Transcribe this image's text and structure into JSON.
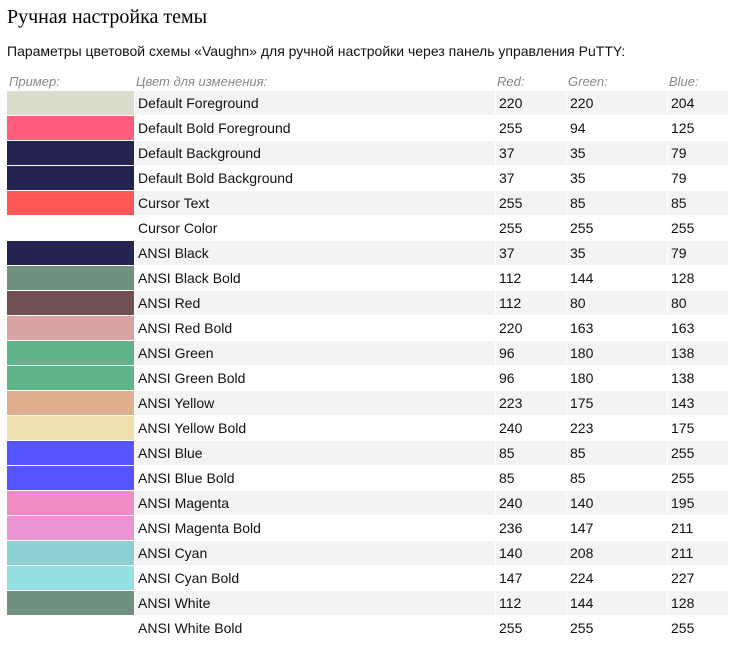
{
  "page": {
    "title": "Ручная настройка темы",
    "intro": "Параметры цветовой схемы «Vaughn» для ручной настройки через панель управления PuTTY:"
  },
  "table": {
    "headers": {
      "swatch": "Пример:",
      "name": "Цвет для изменения:",
      "red": "Red:",
      "green": "Green:",
      "blue": "Blue:"
    },
    "rows": [
      {
        "name": "Default Foreground",
        "red": "220",
        "green": "220",
        "blue": "204",
        "color": "#dcdccc"
      },
      {
        "name": "Default Bold Foreground",
        "red": "255",
        "green": "94",
        "blue": "125",
        "color": "#ff5e7d"
      },
      {
        "name": "Default Background",
        "red": "37",
        "green": "35",
        "blue": "79",
        "color": "#25234f"
      },
      {
        "name": "Default Bold Background",
        "red": "37",
        "green": "35",
        "blue": "79",
        "color": "#25234f"
      },
      {
        "name": "Cursor Text",
        "red": "255",
        "green": "85",
        "blue": "85",
        "color": "#ff5555"
      },
      {
        "name": "Cursor Color",
        "red": "255",
        "green": "255",
        "blue": "255",
        "color": "#ffffff"
      },
      {
        "name": "ANSI Black",
        "red": "37",
        "green": "35",
        "blue": "79",
        "color": "#25234f"
      },
      {
        "name": "ANSI Black Bold",
        "red": "112",
        "green": "144",
        "blue": "128",
        "color": "#709080"
      },
      {
        "name": "ANSI Red",
        "red": "112",
        "green": "80",
        "blue": "80",
        "color": "#705050"
      },
      {
        "name": "ANSI Red Bold",
        "red": "220",
        "green": "163",
        "blue": "163",
        "color": "#dca3a3"
      },
      {
        "name": "ANSI Green",
        "red": "96",
        "green": "180",
        "blue": "138",
        "color": "#60b48a"
      },
      {
        "name": "ANSI Green Bold",
        "red": "96",
        "green": "180",
        "blue": "138",
        "color": "#60b48a"
      },
      {
        "name": "ANSI Yellow",
        "red": "223",
        "green": "175",
        "blue": "143",
        "color": "#dfaf8f"
      },
      {
        "name": "ANSI Yellow Bold",
        "red": "240",
        "green": "223",
        "blue": "175",
        "color": "#f0dfaf"
      },
      {
        "name": "ANSI Blue",
        "red": "85",
        "green": "85",
        "blue": "255",
        "color": "#5555ff"
      },
      {
        "name": "ANSI Blue Bold",
        "red": "85",
        "green": "85",
        "blue": "255",
        "color": "#5555ff"
      },
      {
        "name": "ANSI Magenta",
        "red": "240",
        "green": "140",
        "blue": "195",
        "color": "#f08cc3"
      },
      {
        "name": "ANSI Magenta Bold",
        "red": "236",
        "green": "147",
        "blue": "211",
        "color": "#ec93d3"
      },
      {
        "name": "ANSI Cyan",
        "red": "140",
        "green": "208",
        "blue": "211",
        "color": "#8cd0d3"
      },
      {
        "name": "ANSI Cyan Bold",
        "red": "147",
        "green": "224",
        "blue": "227",
        "color": "#93e0e3"
      },
      {
        "name": "ANSI White",
        "red": "112",
        "green": "144",
        "blue": "128",
        "color": "#709080"
      },
      {
        "name": "ANSI White Bold",
        "red": "255",
        "green": "255",
        "blue": "255",
        "color": "#ffffff"
      }
    ]
  }
}
